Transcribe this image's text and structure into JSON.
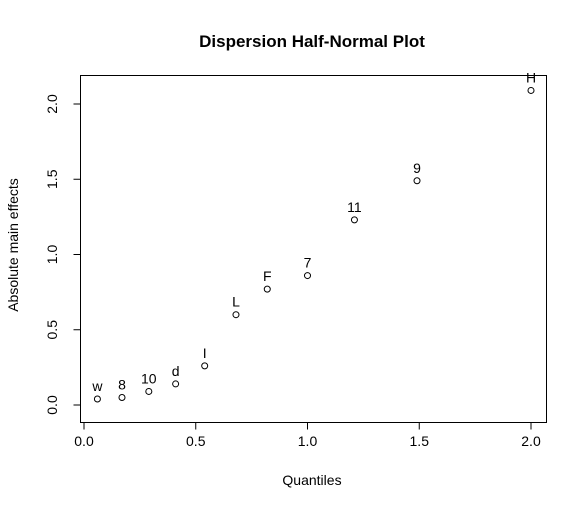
{
  "chart_data": {
    "type": "scatter",
    "title": "Dispersion Half-Normal Plot",
    "xlabel": "Quantiles",
    "ylabel": "Absolute main effects",
    "xlim": [
      0.0,
      2.0
    ],
    "ylim": [
      0.0,
      2.0
    ],
    "x_ticks": [
      "0.0",
      "0.5",
      "1.0",
      "1.5",
      "2.0"
    ],
    "y_ticks": [
      "0.0",
      "0.5",
      "1.0",
      "1.5",
      "2.0"
    ],
    "grid": false,
    "points": [
      {
        "label": "w",
        "x": 0.06,
        "y": 0.04
      },
      {
        "label": "8",
        "x": 0.17,
        "y": 0.05
      },
      {
        "label": "10",
        "x": 0.29,
        "y": 0.09
      },
      {
        "label": "d",
        "x": 0.41,
        "y": 0.14
      },
      {
        "label": "I",
        "x": 0.54,
        "y": 0.26
      },
      {
        "label": "L",
        "x": 0.68,
        "y": 0.6
      },
      {
        "label": "F",
        "x": 0.82,
        "y": 0.77
      },
      {
        "label": "7",
        "x": 1.0,
        "y": 0.86
      },
      {
        "label": "11",
        "x": 1.21,
        "y": 1.23
      },
      {
        "label": "9",
        "x": 1.49,
        "y": 1.49
      },
      {
        "label": "H",
        "x": 2.0,
        "y": 2.09
      }
    ],
    "colors": {
      "points": "#000000",
      "frame": "#000000",
      "background": "#ffffff"
    }
  }
}
